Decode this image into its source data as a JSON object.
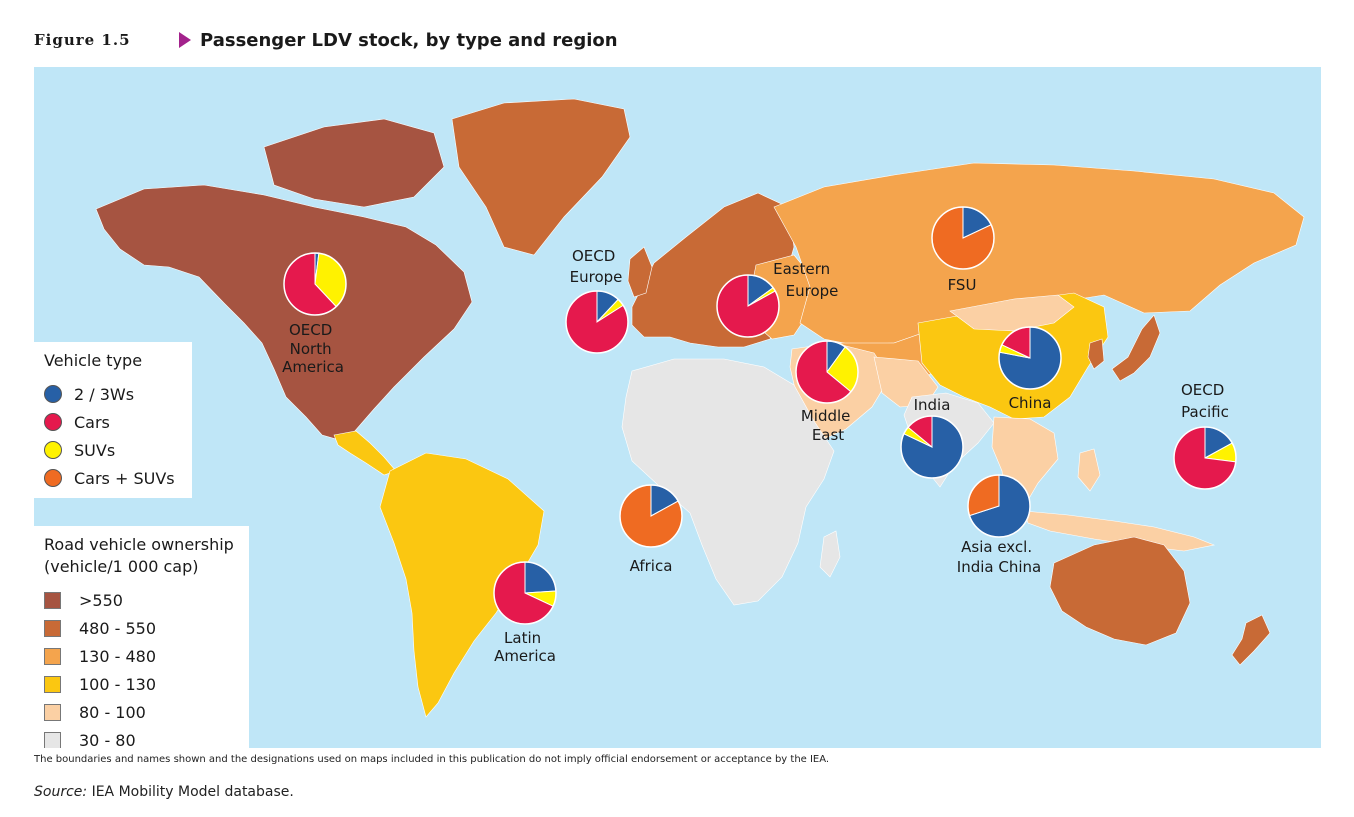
{
  "figure": {
    "label": "Figure 1.5",
    "title": "Passenger LDV stock, by type and region"
  },
  "colors": {
    "ocean": "#bfe6f7",
    "two_three_wheelers": "#2760a6",
    "cars": "#e5194d",
    "suvs": "#fff200",
    "cars_suvs": "#ef6b22",
    "own_550_plus": "#a65441",
    "own_480_550": "#c86a36",
    "own_130_480": "#f4a44d",
    "own_100_130": "#fbc711",
    "own_80_100": "#fbd0a4",
    "own_30_80": "#e6e6e6"
  },
  "vehicle_type_legend": {
    "title": "Vehicle type",
    "items": [
      {
        "label": "2 / 3Ws",
        "color": "#2760a6"
      },
      {
        "label": "Cars",
        "color": "#e5194d"
      },
      {
        "label": "SUVs",
        "color": "#fff200"
      },
      {
        "label": "Cars + SUVs",
        "color": "#ef6b22"
      }
    ]
  },
  "ownership_legend": {
    "title_line1": "Road vehicle ownership",
    "title_line2": "(vehicle/1 000 cap)",
    "items": [
      {
        "label": ">550",
        "color": "#a65441"
      },
      {
        "label": "480 - 550",
        "color": "#c86a36"
      },
      {
        "label": "130 - 480",
        "color": "#f4a44d"
      },
      {
        "label": "100 - 130",
        "color": "#fbc711"
      },
      {
        "label": "80 - 100",
        "color": "#fbd0a4"
      },
      {
        "label": "30 - 80",
        "color": "#e6e6e6"
      }
    ]
  },
  "regions": [
    {
      "id": "oecd-north-america",
      "label_lines": [
        "OECD",
        "North",
        "America"
      ],
      "shares": {
        "two_three_wheelers": 0.02,
        "cars": 0.62,
        "suvs": 0.36,
        "cars_suvs": 0
      }
    },
    {
      "id": "oecd-europe",
      "label_lines": [
        "OECD",
        "Europe"
      ],
      "shares": {
        "two_three_wheelers": 0.12,
        "cars": 0.84,
        "suvs": 0.04,
        "cars_suvs": 0
      }
    },
    {
      "id": "eastern-europe",
      "label_lines": [
        "Eastern",
        "Europe"
      ],
      "shares": {
        "two_three_wheelers": 0.15,
        "cars": 0.83,
        "suvs": 0.02,
        "cars_suvs": 0
      }
    },
    {
      "id": "fsu",
      "label_lines": [
        "FSU"
      ],
      "shares": {
        "two_three_wheelers": 0.18,
        "cars": 0,
        "suvs": 0,
        "cars_suvs": 0.82
      }
    },
    {
      "id": "china",
      "label_lines": [
        "China"
      ],
      "shares": {
        "two_three_wheelers": 0.78,
        "cars": 0.18,
        "suvs": 0.04,
        "cars_suvs": 0
      }
    },
    {
      "id": "middle-east",
      "label_lines": [
        "Middle",
        "East"
      ],
      "shares": {
        "two_three_wheelers": 0.1,
        "cars": 0.64,
        "suvs": 0.26,
        "cars_suvs": 0
      }
    },
    {
      "id": "india",
      "label_lines": [
        "India"
      ],
      "shares": {
        "two_three_wheelers": 0.82,
        "cars": 0.14,
        "suvs": 0.04,
        "cars_suvs": 0
      }
    },
    {
      "id": "oecd-pacific",
      "label_lines": [
        "OECD",
        "Pacific"
      ],
      "shares": {
        "two_three_wheelers": 0.17,
        "cars": 0.73,
        "suvs": 0.1,
        "cars_suvs": 0
      }
    },
    {
      "id": "africa",
      "label_lines": [
        "Africa"
      ],
      "shares": {
        "two_three_wheelers": 0.17,
        "cars": 0,
        "suvs": 0,
        "cars_suvs": 0.83
      }
    },
    {
      "id": "asia-excl-india-china",
      "label_lines": [
        "Asia excl.",
        "India China"
      ],
      "shares": {
        "two_three_wheelers": 0.7,
        "cars": 0,
        "suvs": 0,
        "cars_suvs": 0.3
      }
    },
    {
      "id": "latin-america",
      "label_lines": [
        "Latin",
        "America"
      ],
      "shares": {
        "two_three_wheelers": 0.24,
        "cars": 0.68,
        "suvs": 0.08,
        "cars_suvs": 0
      }
    }
  ],
  "disclaimer": "The boundaries and names shown and the designations used on maps included in this publication do not imply official endorsement or acceptance by the IEA.",
  "source_prefix": "Source:",
  "source_text": "IEA Mobility Model database."
}
